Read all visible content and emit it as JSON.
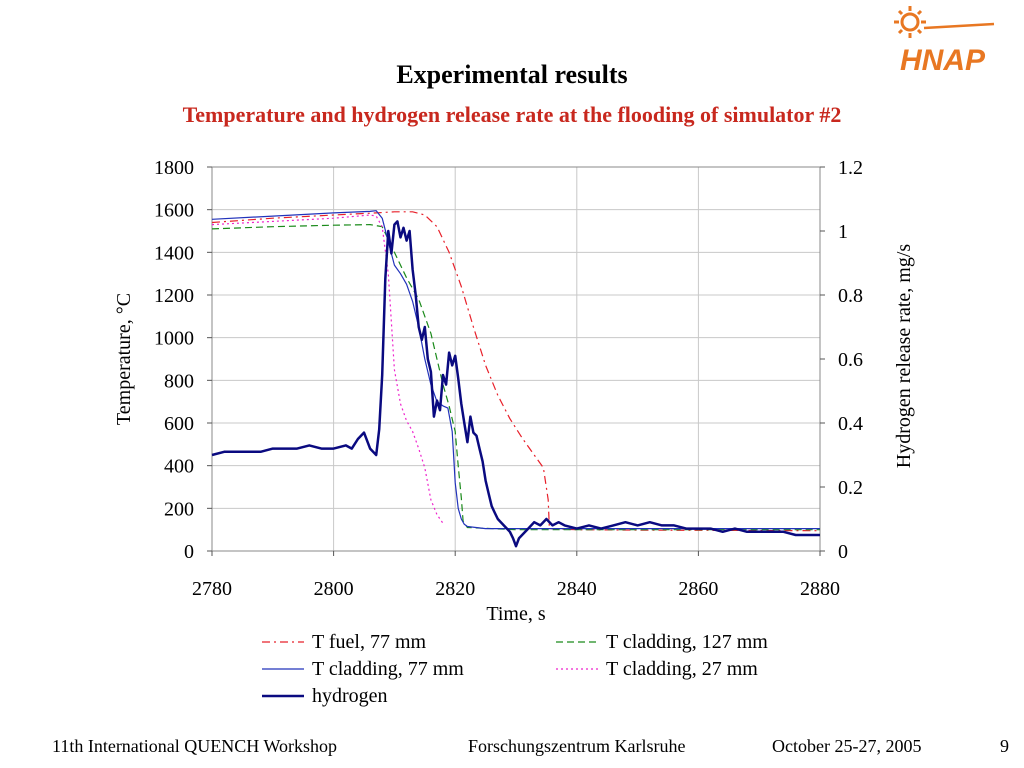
{
  "slide": {
    "title": "Experimental results",
    "subtitle": "Temperature and hydrogen release rate at the flooding of simulator #2",
    "logo_text": "HNAP",
    "accent_color": "#c8281e",
    "logo_color": "#e87722"
  },
  "footer": {
    "workshop": "11th International QUENCH Workshop",
    "institution": "Forschungszentrum Karlsruhe",
    "date": "October 25-27, 2005",
    "page": "9"
  },
  "chart_data": {
    "type": "line",
    "title": "",
    "xlabel": "Time, s",
    "ylabel": "Temperature, °C",
    "y2label": "Hydrogen release rate, mg/s",
    "xlim": [
      2780,
      2880
    ],
    "ylim": [
      0,
      1800
    ],
    "y2lim": [
      0,
      1.2
    ],
    "x_ticks": [
      "2780",
      "2800",
      "2820",
      "2840",
      "2860",
      "2880"
    ],
    "y_ticks": [
      "0",
      "200",
      "400",
      "600",
      "800",
      "1000",
      "1200",
      "1400",
      "1600",
      "1800"
    ],
    "y2_ticks": [
      "0",
      "0.2",
      "0.4",
      "0.6",
      "0.8",
      "1",
      "1.2"
    ],
    "grid": true,
    "legend_position": "bottom",
    "series": [
      {
        "name": "T fuel, 77 mm",
        "axis": "left",
        "color": "#e8202a",
        "style": "dashdot",
        "width": 1.2,
        "points": [
          [
            2780,
            1540
          ],
          [
            2790,
            1560
          ],
          [
            2800,
            1575
          ],
          [
            2807,
            1585
          ],
          [
            2810,
            1590
          ],
          [
            2813,
            1590
          ],
          [
            2815,
            1575
          ],
          [
            2817,
            1520
          ],
          [
            2819,
            1400
          ],
          [
            2821,
            1240
          ],
          [
            2823,
            1050
          ],
          [
            2825,
            870
          ],
          [
            2827,
            730
          ],
          [
            2829,
            620
          ],
          [
            2831,
            530
          ],
          [
            2833,
            450
          ],
          [
            2834.5,
            390
          ],
          [
            2835.3,
            240
          ],
          [
            2835.5,
            105
          ],
          [
            2840,
            100
          ],
          [
            2850,
            98
          ],
          [
            2860,
            97
          ],
          [
            2870,
            96
          ],
          [
            2880,
            95
          ]
        ]
      },
      {
        "name": "T cladding, 127 mm",
        "axis": "left",
        "color": "#1a8a1a",
        "style": "dashed",
        "width": 1.2,
        "points": [
          [
            2780,
            1510
          ],
          [
            2790,
            1520
          ],
          [
            2800,
            1527
          ],
          [
            2806,
            1530
          ],
          [
            2808,
            1520
          ],
          [
            2810,
            1400
          ],
          [
            2812,
            1280
          ],
          [
            2814,
            1180
          ],
          [
            2816,
            1020
          ],
          [
            2818,
            780
          ],
          [
            2819,
            680
          ],
          [
            2820,
            560
          ],
          [
            2820.5,
            400
          ],
          [
            2821,
            250
          ],
          [
            2821.3,
            140
          ],
          [
            2822,
            110
          ],
          [
            2830,
            100
          ],
          [
            2840,
            100
          ],
          [
            2860,
            100
          ],
          [
            2880,
            100
          ]
        ]
      },
      {
        "name": "T cladding, 77 mm",
        "axis": "left",
        "color": "#2233bb",
        "style": "solid",
        "width": 1.2,
        "points": [
          [
            2780,
            1555
          ],
          [
            2790,
            1570
          ],
          [
            2800,
            1585
          ],
          [
            2806,
            1592
          ],
          [
            2807,
            1595
          ],
          [
            2808,
            1560
          ],
          [
            2809,
            1450
          ],
          [
            2810,
            1340
          ],
          [
            2811,
            1300
          ],
          [
            2812,
            1250
          ],
          [
            2813,
            1170
          ],
          [
            2814,
            1050
          ],
          [
            2815,
            900
          ],
          [
            2816,
            780
          ],
          [
            2817,
            700
          ],
          [
            2818,
            680
          ],
          [
            2818.8,
            670
          ],
          [
            2819.5,
            560
          ],
          [
            2820,
            320
          ],
          [
            2820.5,
            200
          ],
          [
            2821,
            150
          ],
          [
            2821.5,
            125
          ],
          [
            2822,
            115
          ],
          [
            2825,
            105
          ],
          [
            2830,
            105
          ],
          [
            2840,
            105
          ],
          [
            2850,
            105
          ],
          [
            2860,
            105
          ],
          [
            2870,
            105
          ],
          [
            2880,
            105
          ]
        ]
      },
      {
        "name": "T cladding, 27 mm",
        "axis": "left",
        "color": "#ee22cc",
        "style": "dotted",
        "width": 1.2,
        "points": [
          [
            2780,
            1530
          ],
          [
            2790,
            1545
          ],
          [
            2800,
            1560
          ],
          [
            2806,
            1575
          ],
          [
            2807,
            1570
          ],
          [
            2808,
            1520
          ],
          [
            2809,
            1300
          ],
          [
            2810,
            850
          ],
          [
            2811,
            690
          ],
          [
            2812,
            610
          ],
          [
            2813,
            560
          ],
          [
            2814,
            480
          ],
          [
            2815,
            390
          ],
          [
            2816,
            240
          ],
          [
            2817,
            170
          ],
          [
            2818,
            130
          ]
        ]
      },
      {
        "name": "hydrogen",
        "axis": "right",
        "color": "#0a0a80",
        "style": "solid",
        "width": 2.5,
        "points": [
          [
            2780,
            0.3
          ],
          [
            2782,
            0.31
          ],
          [
            2784,
            0.31
          ],
          [
            2788,
            0.31
          ],
          [
            2790,
            0.32
          ],
          [
            2794,
            0.32
          ],
          [
            2796,
            0.33
          ],
          [
            2798,
            0.32
          ],
          [
            2800,
            0.32
          ],
          [
            2802,
            0.33
          ],
          [
            2803,
            0.32
          ],
          [
            2804,
            0.35
          ],
          [
            2805,
            0.37
          ],
          [
            2806,
            0.32
          ],
          [
            2807,
            0.3
          ],
          [
            2807.5,
            0.38
          ],
          [
            2808,
            0.55
          ],
          [
            2808.5,
            0.85
          ],
          [
            2809,
            1.0
          ],
          [
            2809.5,
            0.93
          ],
          [
            2810,
            1.02
          ],
          [
            2810.5,
            1.03
          ],
          [
            2811,
            0.98
          ],
          [
            2811.5,
            1.01
          ],
          [
            2812,
            0.97
          ],
          [
            2812.5,
            1.0
          ],
          [
            2813,
            0.88
          ],
          [
            2813.5,
            0.8
          ],
          [
            2814,
            0.7
          ],
          [
            2814.5,
            0.66
          ],
          [
            2815,
            0.7
          ],
          [
            2815.5,
            0.6
          ],
          [
            2816,
            0.56
          ],
          [
            2816.5,
            0.42
          ],
          [
            2817,
            0.47
          ],
          [
            2817.5,
            0.44
          ],
          [
            2818,
            0.55
          ],
          [
            2818.5,
            0.52
          ],
          [
            2819,
            0.62
          ],
          [
            2819.5,
            0.58
          ],
          [
            2820,
            0.61
          ],
          [
            2820.5,
            0.54
          ],
          [
            2821,
            0.46
          ],
          [
            2821.5,
            0.4
          ],
          [
            2822,
            0.34
          ],
          [
            2822.5,
            0.42
          ],
          [
            2823,
            0.37
          ],
          [
            2823.5,
            0.36
          ],
          [
            2824,
            0.32
          ],
          [
            2824.5,
            0.28
          ],
          [
            2825,
            0.22
          ],
          [
            2825.5,
            0.18
          ],
          [
            2826,
            0.14
          ],
          [
            2826.5,
            0.12
          ],
          [
            2827,
            0.1
          ],
          [
            2828,
            0.08
          ],
          [
            2829,
            0.06
          ],
          [
            2829.5,
            0.04
          ],
          [
            2830,
            0.015
          ],
          [
            2830.5,
            0.04
          ],
          [
            2831,
            0.05
          ],
          [
            2832,
            0.07
          ],
          [
            2833,
            0.09
          ],
          [
            2834,
            0.08
          ],
          [
            2835,
            0.1
          ],
          [
            2836,
            0.08
          ],
          [
            2837,
            0.09
          ],
          [
            2838,
            0.08
          ],
          [
            2840,
            0.07
          ],
          [
            2842,
            0.08
          ],
          [
            2844,
            0.07
          ],
          [
            2846,
            0.08
          ],
          [
            2848,
            0.09
          ],
          [
            2850,
            0.08
          ],
          [
            2852,
            0.09
          ],
          [
            2854,
            0.08
          ],
          [
            2856,
            0.08
          ],
          [
            2858,
            0.07
          ],
          [
            2860,
            0.07
          ],
          [
            2862,
            0.07
          ],
          [
            2864,
            0.06
          ],
          [
            2866,
            0.07
          ],
          [
            2868,
            0.06
          ],
          [
            2870,
            0.06
          ],
          [
            2872,
            0.06
          ],
          [
            2874,
            0.06
          ],
          [
            2876,
            0.05
          ],
          [
            2878,
            0.05
          ],
          [
            2880,
            0.05
          ]
        ]
      }
    ]
  }
}
